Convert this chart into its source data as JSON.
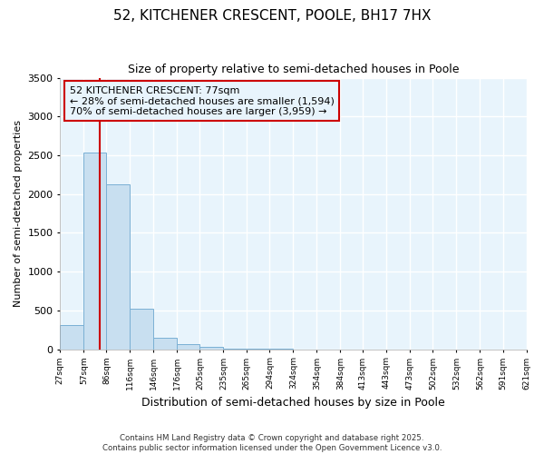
{
  "title1": "52, KITCHENER CRESCENT, POOLE, BH17 7HX",
  "title2": "Size of property relative to semi-detached houses in Poole",
  "xlabel": "Distribution of semi-detached houses by size in Poole",
  "ylabel": "Number of semi-detached properties",
  "bin_edges": [
    27,
    57,
    86,
    116,
    146,
    176,
    205,
    235,
    265,
    294,
    324,
    354,
    384,
    413,
    443,
    473,
    502,
    532,
    562,
    591,
    621
  ],
  "bar_heights": [
    310,
    2540,
    2120,
    520,
    150,
    70,
    30,
    10,
    4,
    2,
    1,
    1,
    1,
    0,
    0,
    0,
    0,
    0,
    0,
    0
  ],
  "bar_color": "#c8dff0",
  "bar_edgecolor": "#7ab0d4",
  "property_size": 77,
  "property_line_color": "#cc0000",
  "annotation_box_edgecolor": "#cc0000",
  "annotation_text_line1": "52 KITCHENER CRESCENT: 77sqm",
  "annotation_text_line2": "← 28% of semi-detached houses are smaller (1,594)",
  "annotation_text_line3": "70% of semi-detached houses are larger (3,959) →",
  "ylim": [
    0,
    3500
  ],
  "xlim": [
    27,
    621
  ],
  "yticks": [
    0,
    500,
    1000,
    1500,
    2000,
    2500,
    3000,
    3500
  ],
  "background_color": "#ffffff",
  "plot_bg_color": "#e8f4fc",
  "grid_color": "#ffffff",
  "footnote": "Contains HM Land Registry data © Crown copyright and database right 2025.\nContains public sector information licensed under the Open Government Licence v3.0."
}
